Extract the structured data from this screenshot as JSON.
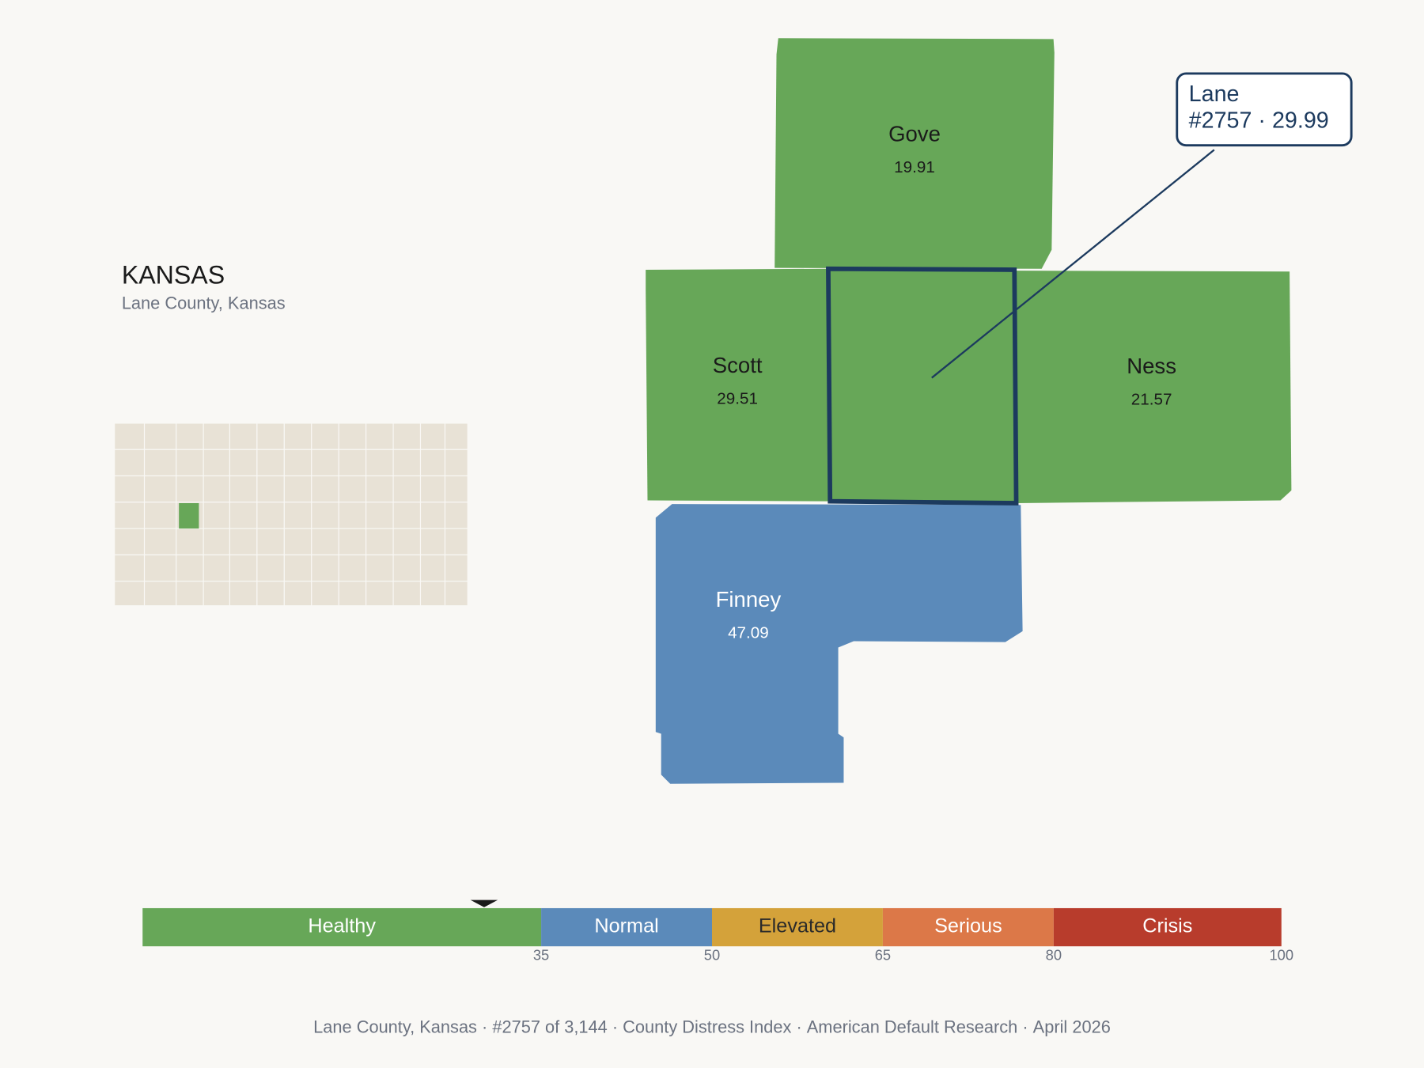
{
  "title": "KANSAS",
  "subtitle": "Lane County, Kansas",
  "selected": {
    "name": "Lane",
    "label": "#2757 · 29.99",
    "value": 29.99
  },
  "counties": [
    {
      "name": "Gove",
      "value": 19.91
    },
    {
      "name": "Scott",
      "value": 29.51
    },
    {
      "name": "Ness",
      "value": 21.57
    },
    {
      "name": "Finney",
      "value": 47.09
    }
  ],
  "legend": {
    "range": [
      0,
      100
    ],
    "ticks": [
      35,
      50,
      65,
      80,
      100
    ],
    "bands": [
      {
        "label": "Healthy",
        "color": "#67a758"
      },
      {
        "label": "Normal",
        "color": "#5b8aba"
      },
      {
        "label": "Elevated",
        "color": "#d4a23a"
      },
      {
        "label": "Serious",
        "color": "#dc7848"
      },
      {
        "label": "Crisis",
        "color": "#b83c2c"
      }
    ]
  },
  "footer": {
    "separator": "·",
    "items": [
      "Lane County, Kansas",
      "#2757 of 3,144",
      "County Distress Index",
      "American Default Research",
      "April 2026"
    ]
  }
}
